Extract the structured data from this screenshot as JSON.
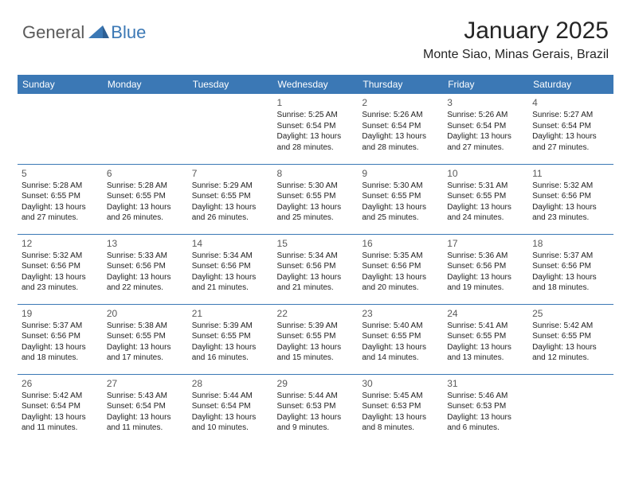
{
  "brand": {
    "text_general": "General",
    "text_blue": "Blue",
    "icon_color": "#3b78b5"
  },
  "header": {
    "title": "January 2025",
    "location": "Monte Siao, Minas Gerais, Brazil"
  },
  "colors": {
    "header_bar": "#3b78b5",
    "header_text": "#ffffff",
    "border": "#3b78b5",
    "daynum_color": "#5a5a5a",
    "body_text": "#222222",
    "title_color": "#252525",
    "background": "#ffffff"
  },
  "day_names": [
    "Sunday",
    "Monday",
    "Tuesday",
    "Wednesday",
    "Thursday",
    "Friday",
    "Saturday"
  ],
  "weeks": [
    [
      null,
      null,
      null,
      {
        "day": "1",
        "sunrise": "Sunrise: 5:25 AM",
        "sunset": "Sunset: 6:54 PM",
        "daylight1": "Daylight: 13 hours",
        "daylight2": "and 28 minutes."
      },
      {
        "day": "2",
        "sunrise": "Sunrise: 5:26 AM",
        "sunset": "Sunset: 6:54 PM",
        "daylight1": "Daylight: 13 hours",
        "daylight2": "and 28 minutes."
      },
      {
        "day": "3",
        "sunrise": "Sunrise: 5:26 AM",
        "sunset": "Sunset: 6:54 PM",
        "daylight1": "Daylight: 13 hours",
        "daylight2": "and 27 minutes."
      },
      {
        "day": "4",
        "sunrise": "Sunrise: 5:27 AM",
        "sunset": "Sunset: 6:54 PM",
        "daylight1": "Daylight: 13 hours",
        "daylight2": "and 27 minutes."
      }
    ],
    [
      {
        "day": "5",
        "sunrise": "Sunrise: 5:28 AM",
        "sunset": "Sunset: 6:55 PM",
        "daylight1": "Daylight: 13 hours",
        "daylight2": "and 27 minutes."
      },
      {
        "day": "6",
        "sunrise": "Sunrise: 5:28 AM",
        "sunset": "Sunset: 6:55 PM",
        "daylight1": "Daylight: 13 hours",
        "daylight2": "and 26 minutes."
      },
      {
        "day": "7",
        "sunrise": "Sunrise: 5:29 AM",
        "sunset": "Sunset: 6:55 PM",
        "daylight1": "Daylight: 13 hours",
        "daylight2": "and 26 minutes."
      },
      {
        "day": "8",
        "sunrise": "Sunrise: 5:30 AM",
        "sunset": "Sunset: 6:55 PM",
        "daylight1": "Daylight: 13 hours",
        "daylight2": "and 25 minutes."
      },
      {
        "day": "9",
        "sunrise": "Sunrise: 5:30 AM",
        "sunset": "Sunset: 6:55 PM",
        "daylight1": "Daylight: 13 hours",
        "daylight2": "and 25 minutes."
      },
      {
        "day": "10",
        "sunrise": "Sunrise: 5:31 AM",
        "sunset": "Sunset: 6:55 PM",
        "daylight1": "Daylight: 13 hours",
        "daylight2": "and 24 minutes."
      },
      {
        "day": "11",
        "sunrise": "Sunrise: 5:32 AM",
        "sunset": "Sunset: 6:56 PM",
        "daylight1": "Daylight: 13 hours",
        "daylight2": "and 23 minutes."
      }
    ],
    [
      {
        "day": "12",
        "sunrise": "Sunrise: 5:32 AM",
        "sunset": "Sunset: 6:56 PM",
        "daylight1": "Daylight: 13 hours",
        "daylight2": "and 23 minutes."
      },
      {
        "day": "13",
        "sunrise": "Sunrise: 5:33 AM",
        "sunset": "Sunset: 6:56 PM",
        "daylight1": "Daylight: 13 hours",
        "daylight2": "and 22 minutes."
      },
      {
        "day": "14",
        "sunrise": "Sunrise: 5:34 AM",
        "sunset": "Sunset: 6:56 PM",
        "daylight1": "Daylight: 13 hours",
        "daylight2": "and 21 minutes."
      },
      {
        "day": "15",
        "sunrise": "Sunrise: 5:34 AM",
        "sunset": "Sunset: 6:56 PM",
        "daylight1": "Daylight: 13 hours",
        "daylight2": "and 21 minutes."
      },
      {
        "day": "16",
        "sunrise": "Sunrise: 5:35 AM",
        "sunset": "Sunset: 6:56 PM",
        "daylight1": "Daylight: 13 hours",
        "daylight2": "and 20 minutes."
      },
      {
        "day": "17",
        "sunrise": "Sunrise: 5:36 AM",
        "sunset": "Sunset: 6:56 PM",
        "daylight1": "Daylight: 13 hours",
        "daylight2": "and 19 minutes."
      },
      {
        "day": "18",
        "sunrise": "Sunrise: 5:37 AM",
        "sunset": "Sunset: 6:56 PM",
        "daylight1": "Daylight: 13 hours",
        "daylight2": "and 18 minutes."
      }
    ],
    [
      {
        "day": "19",
        "sunrise": "Sunrise: 5:37 AM",
        "sunset": "Sunset: 6:56 PM",
        "daylight1": "Daylight: 13 hours",
        "daylight2": "and 18 minutes."
      },
      {
        "day": "20",
        "sunrise": "Sunrise: 5:38 AM",
        "sunset": "Sunset: 6:55 PM",
        "daylight1": "Daylight: 13 hours",
        "daylight2": "and 17 minutes."
      },
      {
        "day": "21",
        "sunrise": "Sunrise: 5:39 AM",
        "sunset": "Sunset: 6:55 PM",
        "daylight1": "Daylight: 13 hours",
        "daylight2": "and 16 minutes."
      },
      {
        "day": "22",
        "sunrise": "Sunrise: 5:39 AM",
        "sunset": "Sunset: 6:55 PM",
        "daylight1": "Daylight: 13 hours",
        "daylight2": "and 15 minutes."
      },
      {
        "day": "23",
        "sunrise": "Sunrise: 5:40 AM",
        "sunset": "Sunset: 6:55 PM",
        "daylight1": "Daylight: 13 hours",
        "daylight2": "and 14 minutes."
      },
      {
        "day": "24",
        "sunrise": "Sunrise: 5:41 AM",
        "sunset": "Sunset: 6:55 PM",
        "daylight1": "Daylight: 13 hours",
        "daylight2": "and 13 minutes."
      },
      {
        "day": "25",
        "sunrise": "Sunrise: 5:42 AM",
        "sunset": "Sunset: 6:55 PM",
        "daylight1": "Daylight: 13 hours",
        "daylight2": "and 12 minutes."
      }
    ],
    [
      {
        "day": "26",
        "sunrise": "Sunrise: 5:42 AM",
        "sunset": "Sunset: 6:54 PM",
        "daylight1": "Daylight: 13 hours",
        "daylight2": "and 11 minutes."
      },
      {
        "day": "27",
        "sunrise": "Sunrise: 5:43 AM",
        "sunset": "Sunset: 6:54 PM",
        "daylight1": "Daylight: 13 hours",
        "daylight2": "and 11 minutes."
      },
      {
        "day": "28",
        "sunrise": "Sunrise: 5:44 AM",
        "sunset": "Sunset: 6:54 PM",
        "daylight1": "Daylight: 13 hours",
        "daylight2": "and 10 minutes."
      },
      {
        "day": "29",
        "sunrise": "Sunrise: 5:44 AM",
        "sunset": "Sunset: 6:53 PM",
        "daylight1": "Daylight: 13 hours",
        "daylight2": "and 9 minutes."
      },
      {
        "day": "30",
        "sunrise": "Sunrise: 5:45 AM",
        "sunset": "Sunset: 6:53 PM",
        "daylight1": "Daylight: 13 hours",
        "daylight2": "and 8 minutes."
      },
      {
        "day": "31",
        "sunrise": "Sunrise: 5:46 AM",
        "sunset": "Sunset: 6:53 PM",
        "daylight1": "Daylight: 13 hours",
        "daylight2": "and 6 minutes."
      },
      null
    ]
  ]
}
